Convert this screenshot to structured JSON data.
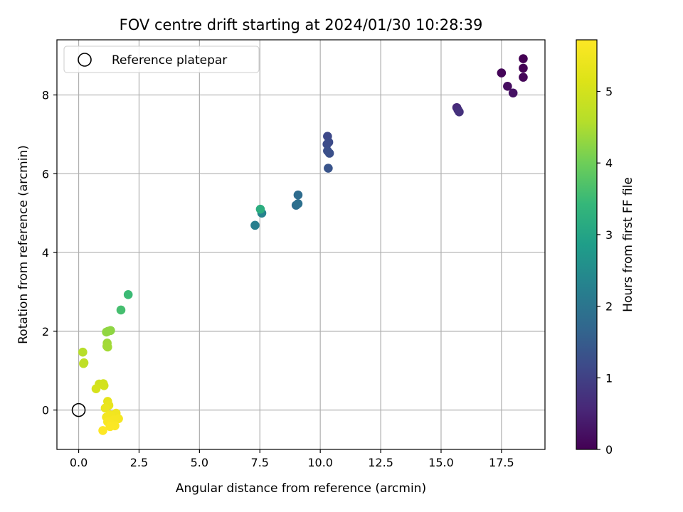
{
  "chart_data": {
    "type": "scatter",
    "title": "FOV centre drift starting at 2024/01/30 10:28:39",
    "xlabel": "Angular distance from reference (arcmin)",
    "ylabel": "Rotation from reference (arcmin)",
    "xlim": [
      -0.9,
      19.3
    ],
    "ylim": [
      -1.0,
      9.4
    ],
    "x_ticks": [
      "0.0",
      "2.5",
      "5.0",
      "7.5",
      "10.0",
      "12.5",
      "15.0",
      "17.5"
    ],
    "y_ticks": [
      "0",
      "2",
      "4",
      "6",
      "8"
    ],
    "grid": true,
    "legend": {
      "placement": "top-left",
      "entries": [
        {
          "label": "Reference platepar",
          "marker": "open-circle"
        }
      ]
    },
    "reference_point": {
      "x": 0.0,
      "y": 0.0
    },
    "colorbar": {
      "label": "Hours from first FF file",
      "range": [
        0,
        5.72
      ],
      "ticks": [
        "0",
        "1",
        "2",
        "3",
        "4",
        "5"
      ],
      "colormap": "viridis"
    },
    "points": [
      {
        "x": 18.4,
        "y": 8.92,
        "c": 0.0
      },
      {
        "x": 18.4,
        "y": 8.68,
        "c": 0.02
      },
      {
        "x": 17.5,
        "y": 8.56,
        "c": 0.06
      },
      {
        "x": 18.4,
        "y": 8.45,
        "c": 0.08
      },
      {
        "x": 17.75,
        "y": 8.22,
        "c": 0.18
      },
      {
        "x": 17.98,
        "y": 8.05,
        "c": 0.25
      },
      {
        "x": 15.65,
        "y": 7.68,
        "c": 0.6
      },
      {
        "x": 15.7,
        "y": 7.62,
        "c": 0.66
      },
      {
        "x": 15.75,
        "y": 7.57,
        "c": 0.72
      },
      {
        "x": 10.3,
        "y": 6.95,
        "c": 1.15
      },
      {
        "x": 10.35,
        "y": 6.8,
        "c": 1.18
      },
      {
        "x": 10.28,
        "y": 6.75,
        "c": 1.2
      },
      {
        "x": 10.3,
        "y": 6.58,
        "c": 1.25
      },
      {
        "x": 10.38,
        "y": 6.52,
        "c": 1.28
      },
      {
        "x": 10.33,
        "y": 6.14,
        "c": 1.35
      },
      {
        "x": 9.08,
        "y": 5.46,
        "c": 1.8
      },
      {
        "x": 9.0,
        "y": 5.2,
        "c": 1.85
      },
      {
        "x": 9.08,
        "y": 5.24,
        "c": 1.9
      },
      {
        "x": 7.3,
        "y": 4.69,
        "c": 2.2
      },
      {
        "x": 7.58,
        "y": 5.0,
        "c": 2.3
      },
      {
        "x": 7.52,
        "y": 5.1,
        "c": 3.2
      },
      {
        "x": 2.05,
        "y": 2.93,
        "c": 3.5
      },
      {
        "x": 1.75,
        "y": 2.54,
        "c": 3.6
      },
      {
        "x": 1.32,
        "y": 2.02,
        "c": 4.25
      },
      {
        "x": 1.15,
        "y": 1.98,
        "c": 4.3
      },
      {
        "x": 1.22,
        "y": 2.0,
        "c": 4.28
      },
      {
        "x": 1.18,
        "y": 1.7,
        "c": 4.4
      },
      {
        "x": 1.2,
        "y": 1.6,
        "c": 4.45
      },
      {
        "x": 1.17,
        "y": 1.62,
        "c": 4.42
      },
      {
        "x": 0.17,
        "y": 1.47,
        "c": 4.6
      },
      {
        "x": 0.22,
        "y": 1.2,
        "c": 4.7
      },
      {
        "x": 0.2,
        "y": 1.18,
        "c": 4.72
      },
      {
        "x": 0.85,
        "y": 0.66,
        "c": 4.95
      },
      {
        "x": 1.02,
        "y": 0.67,
        "c": 4.98
      },
      {
        "x": 1.05,
        "y": 0.62,
        "c": 5.0
      },
      {
        "x": 0.72,
        "y": 0.54,
        "c": 5.05
      },
      {
        "x": 1.2,
        "y": 0.22,
        "c": 5.3
      },
      {
        "x": 1.25,
        "y": 0.12,
        "c": 5.35
      },
      {
        "x": 1.1,
        "y": 0.05,
        "c": 5.4
      },
      {
        "x": 1.55,
        "y": -0.08,
        "c": 5.5
      },
      {
        "x": 1.3,
        "y": -0.12,
        "c": 5.52
      },
      {
        "x": 1.15,
        "y": -0.18,
        "c": 5.55
      },
      {
        "x": 1.65,
        "y": -0.22,
        "c": 5.58
      },
      {
        "x": 1.45,
        "y": -0.25,
        "c": 5.6
      },
      {
        "x": 1.2,
        "y": -0.3,
        "c": 5.62
      },
      {
        "x": 1.35,
        "y": -0.36,
        "c": 5.64
      },
      {
        "x": 1.5,
        "y": -0.4,
        "c": 5.66
      },
      {
        "x": 1.3,
        "y": -0.42,
        "c": 5.68
      },
      {
        "x": 1.0,
        "y": -0.52,
        "c": 5.72
      }
    ]
  }
}
